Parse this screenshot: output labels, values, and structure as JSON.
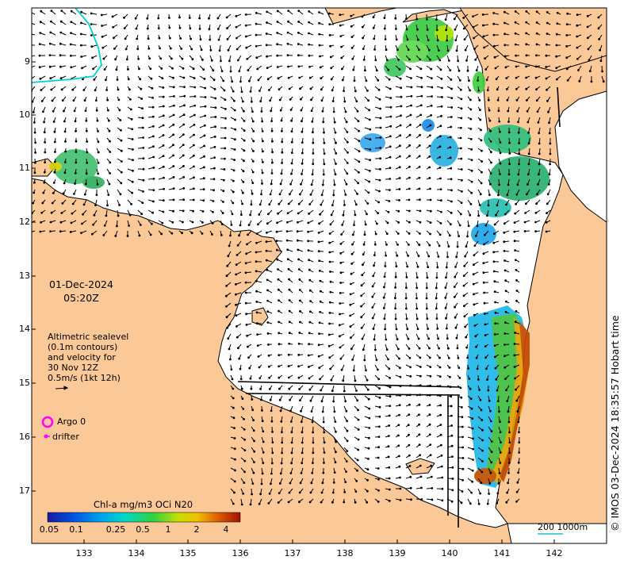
{
  "map": {
    "date_line1": "01-Dec-2024",
    "date_line2": "05:20Z",
    "legend_lines": [
      "Altimetric sealevel",
      "(0.1m contours)",
      "and velocity for",
      "30 Nov 12Z",
      "0.5m/s (1kt 12h)"
    ],
    "argo_label": "Argo 0",
    "drifter_label": "drifter",
    "credit": "© IMOS 03-Dec-2024 18:35:57 Hobart time",
    "scale_label": "200  1000m",
    "colorbar_title": "Chl-a mg/m3 OCi N20",
    "colorbar_ticks": [
      "0.05",
      "0.1",
      "0.25",
      "0.5",
      "1",
      "2",
      "4"
    ],
    "lon_labels": [
      "133",
      "134",
      "135",
      "136",
      "137",
      "138",
      "139",
      "140",
      "141",
      "142"
    ],
    "lat_labels": [
      "9",
      "10",
      "11",
      "12",
      "13",
      "14",
      "15",
      "16",
      "17"
    ],
    "colors": {
      "land": "#fbc898",
      "coast": "#000000",
      "argo": "#ff00ff",
      "contour": "#00d0d0",
      "scale": "#20c0c0"
    }
  }
}
